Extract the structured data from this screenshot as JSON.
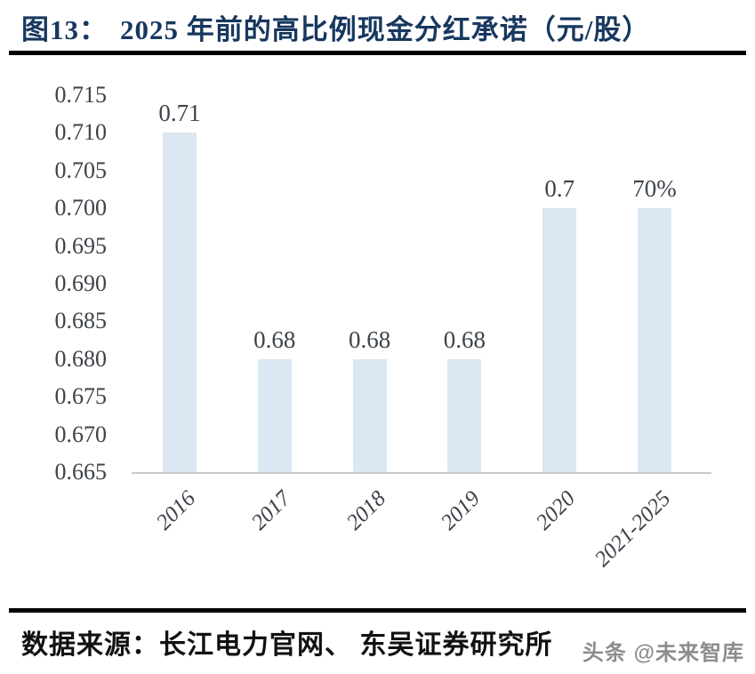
{
  "figure": {
    "label": "图13：",
    "title": "2025 年前的高比例现金分红承诺（元/股）"
  },
  "chart_data": {
    "type": "bar",
    "title": "2025 年前的高比例现金分红承诺（元/股）",
    "categories": [
      "2016",
      "2017",
      "2018",
      "2019",
      "2020",
      "2021-2025"
    ],
    "values": [
      0.71,
      0.68,
      0.68,
      0.68,
      0.7,
      0.7
    ],
    "bar_labels": [
      "0.71",
      "0.68",
      "0.68",
      "0.68",
      "0.7",
      "70%"
    ],
    "xlabel": "",
    "ylabel": "",
    "ylim": [
      0.665,
      0.715
    ],
    "ytick_step": 0.005,
    "ytick_labels": [
      "0.715",
      "0.710",
      "0.705",
      "0.700",
      "0.695",
      "0.690",
      "0.685",
      "0.680",
      "0.675",
      "0.670",
      "0.665"
    ],
    "x_tick_rotation_deg": 45,
    "grid": false,
    "legend": false,
    "bar_color": "#dbe7f3",
    "axis_line_color": "#c9c9c9",
    "tick_text_color": "#3d4349"
  },
  "footer": {
    "source": "数据来源：长江电力官网、 东吴证券研究所",
    "watermark": "头条 @未来智库"
  },
  "colors": {
    "title_text": "#17375e",
    "divider": "#000000",
    "watermark_text": "#8d8d8d"
  }
}
